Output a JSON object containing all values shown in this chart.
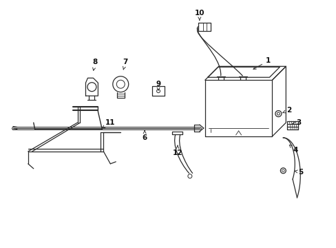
{
  "bg_color": "#ffffff",
  "line_color": "#2a2a2a",
  "label_color": "#111111",
  "figsize": [
    4.89,
    3.6
  ],
  "dpi": 100,
  "label_arrows": {
    "1": {
      "lpos": [
        3.9,
        2.72
      ],
      "apos": [
        3.65,
        2.58
      ]
    },
    "2": {
      "lpos": [
        4.2,
        2.0
      ],
      "apos": [
        4.08,
        1.95
      ]
    },
    "3": {
      "lpos": [
        4.35,
        1.82
      ],
      "apos": [
        4.22,
        1.8
      ]
    },
    "4": {
      "lpos": [
        4.3,
        1.42
      ],
      "apos": [
        4.18,
        1.52
      ]
    },
    "5": {
      "lpos": [
        4.38,
        1.1
      ],
      "apos": [
        4.25,
        1.12
      ]
    },
    "6": {
      "lpos": [
        2.1,
        1.6
      ],
      "apos": [
        2.1,
        1.74
      ]
    },
    "7": {
      "lpos": [
        1.82,
        2.7
      ],
      "apos": [
        1.78,
        2.56
      ]
    },
    "8": {
      "lpos": [
        1.38,
        2.7
      ],
      "apos": [
        1.35,
        2.57
      ]
    },
    "9": {
      "lpos": [
        2.3,
        2.38
      ],
      "apos": [
        2.3,
        2.28
      ]
    },
    "10": {
      "lpos": [
        2.9,
        3.42
      ],
      "apos": [
        2.9,
        3.28
      ]
    },
    "11": {
      "lpos": [
        1.6,
        1.82
      ],
      "apos": [
        1.45,
        1.72
      ]
    },
    "12": {
      "lpos": [
        2.58,
        1.38
      ],
      "apos": [
        2.58,
        1.52
      ]
    }
  }
}
